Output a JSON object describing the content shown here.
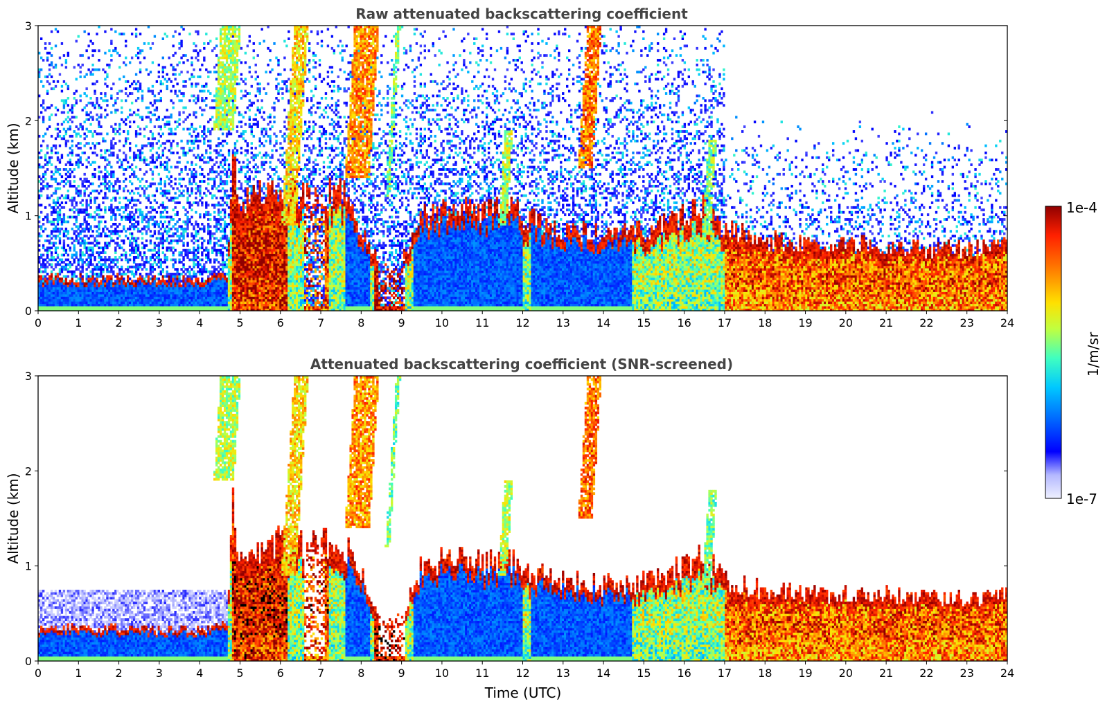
{
  "chart_data": [
    {
      "type": "heatmap",
      "title": "Raw attenuated backscattering coefficient",
      "xlabel": "",
      "ylabel": "Altitude (km)",
      "xlim": [
        0,
        24
      ],
      "ylim": [
        0,
        3
      ],
      "xticks": [
        "0",
        "1",
        "2",
        "3",
        "4",
        "5",
        "6",
        "7",
        "8",
        "9",
        "10",
        "11",
        "12",
        "13",
        "14",
        "15",
        "16",
        "17",
        "18",
        "19",
        "20",
        "21",
        "22",
        "23",
        "24"
      ],
      "yticks": [
        "0",
        "1",
        "2",
        "3"
      ],
      "grid": false,
      "screened": false
    },
    {
      "type": "heatmap",
      "title": "Attenuated backscattering coefficient (SNR-screened)",
      "xlabel": "Time (UTC)",
      "ylabel": "Altitude (km)",
      "xlim": [
        0,
        24
      ],
      "ylim": [
        0,
        3
      ],
      "xticks": [
        "0",
        "1",
        "2",
        "3",
        "4",
        "5",
        "6",
        "7",
        "8",
        "9",
        "10",
        "11",
        "12",
        "13",
        "14",
        "15",
        "16",
        "17",
        "18",
        "19",
        "20",
        "21",
        "22",
        "23",
        "24"
      ],
      "yticks": [
        "0",
        "1",
        "2",
        "3"
      ],
      "grid": false,
      "screened": true
    }
  ],
  "colorbar": {
    "label": "1/m/sr",
    "max_label": "1e-4",
    "min_label": "1e-7",
    "range": [
      1e-07,
      0.0001
    ],
    "scale": "log",
    "colormap": "jet",
    "colors": [
      "#eef0ff",
      "#b4b8ff",
      "#0000ff",
      "#0070ff",
      "#00c8ff",
      "#40ffc0",
      "#c0ff40",
      "#ffe000",
      "#ff8000",
      "#ff2000",
      "#900000"
    ]
  },
  "features": {
    "layer_top_km": [
      [
        0,
        0.35
      ],
      [
        1,
        0.35
      ],
      [
        2,
        0.34
      ],
      [
        3,
        0.33
      ],
      [
        4,
        0.33
      ],
      [
        4.7,
        0.38
      ],
      [
        4.8,
        1.7
      ],
      [
        5,
        1.1
      ],
      [
        5.5,
        1.2
      ],
      [
        6,
        1.3
      ],
      [
        6.5,
        1.2
      ],
      [
        7,
        1.2
      ],
      [
        7.5,
        1.3
      ],
      [
        8,
        0.9
      ],
      [
        8.5,
        0.45
      ],
      [
        9,
        0.5
      ],
      [
        9.5,
        1.0
      ],
      [
        10,
        1.05
      ],
      [
        10.5,
        1.1
      ],
      [
        11,
        1.0
      ],
      [
        11.5,
        1.1
      ],
      [
        12,
        1.0
      ],
      [
        12.5,
        0.9
      ],
      [
        13,
        0.85
      ],
      [
        13.5,
        0.85
      ],
      [
        14,
        0.8
      ],
      [
        14.5,
        0.8
      ],
      [
        15,
        0.85
      ],
      [
        15.5,
        0.9
      ],
      [
        16,
        1.0
      ],
      [
        16.5,
        1.1
      ],
      [
        17,
        0.85
      ],
      [
        18,
        0.75
      ],
      [
        19,
        0.7
      ],
      [
        20,
        0.7
      ],
      [
        21,
        0.7
      ],
      [
        22,
        0.65
      ],
      [
        23,
        0.65
      ],
      [
        24,
        0.7
      ]
    ],
    "cloud_streaks": [
      {
        "t": 4.6,
        "w": 0.5,
        "alt": [
          1.9,
          3.0
        ],
        "level": 0.6
      },
      {
        "t": 6.2,
        "w": 0.35,
        "alt": [
          0.9,
          3.0
        ],
        "level": 0.7
      },
      {
        "t": 7.9,
        "w": 0.6,
        "alt": [
          1.4,
          3.0
        ],
        "level": 0.78
      },
      {
        "t": 8.65,
        "w": 0.1,
        "alt": [
          1.2,
          3.0
        ],
        "level": 0.55
      },
      {
        "t": 11.5,
        "w": 0.2,
        "alt": [
          0.9,
          1.9
        ],
        "level": 0.6
      },
      {
        "t": 13.55,
        "w": 0.35,
        "alt": [
          1.5,
          3.0
        ],
        "level": 0.82
      },
      {
        "t": 16.55,
        "w": 0.2,
        "alt": [
          0.8,
          1.8
        ],
        "level": 0.55
      }
    ],
    "gap_columns": [
      [
        6.6,
        7.1,
        1.2
      ],
      [
        8.45,
        9.1,
        0.6
      ]
    ],
    "heavy_bursts": [
      [
        4.8,
        6.2,
        0.95
      ],
      [
        6.6,
        7.2,
        0.9
      ],
      [
        8.3,
        9.1,
        1.0
      ],
      [
        17,
        24,
        0.85
      ]
    ],
    "blue_blocks": [
      [
        0,
        4.7,
        0.2
      ],
      [
        7.6,
        8.2,
        0.3
      ],
      [
        9.3,
        12,
        0.3
      ],
      [
        12.2,
        14.7,
        0.3
      ]
    ],
    "raw_noise_density": 0.55
  }
}
